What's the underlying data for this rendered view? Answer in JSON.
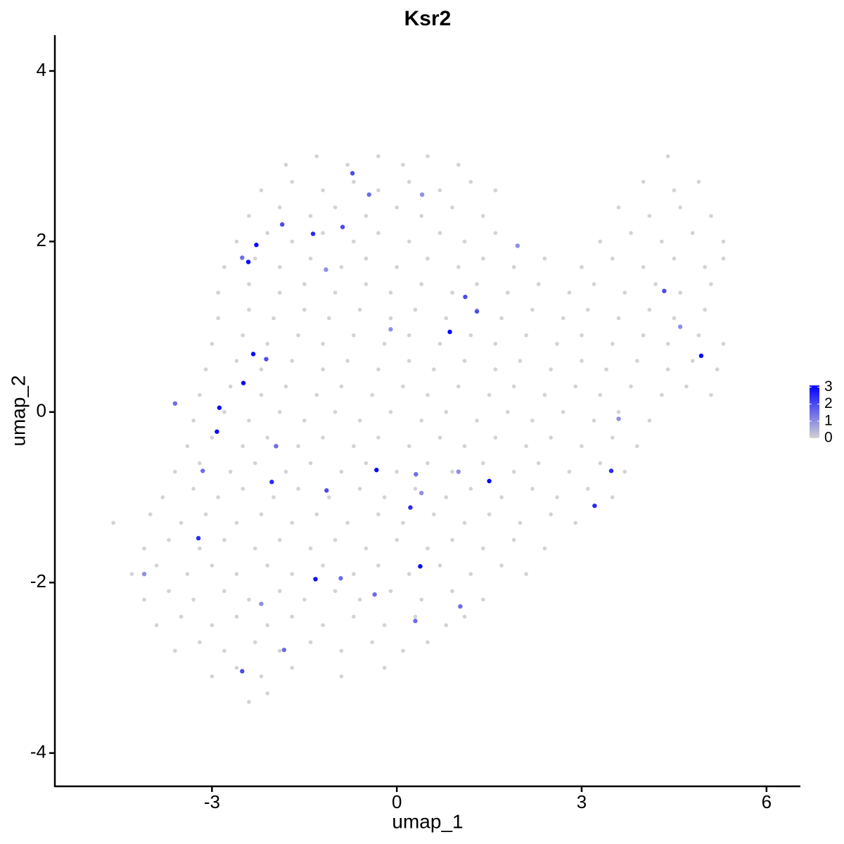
{
  "chart_data": {
    "type": "scatter",
    "title": "Ksr2",
    "xlabel": "umap_1",
    "ylabel": "umap_2",
    "xlim": [
      -5.55,
      6.55
    ],
    "ylim": [
      -4.39,
      4.42
    ],
    "xticks": [
      -3,
      0,
      3,
      6
    ],
    "yticks": [
      -4,
      -2,
      0,
      2,
      4
    ],
    "colorbar": {
      "low_color": "#d3d3d3",
      "high_color": "#0000ff",
      "lim": [
        0,
        3.1
      ],
      "ticks": [
        0,
        1,
        2,
        3
      ]
    },
    "series": [
      {
        "color": "#d3d3d3",
        "x": [
          -2.4,
          -2.1,
          -3.0,
          -2.6,
          -2.2,
          -1.7,
          -0.9,
          -0.2,
          -3.6,
          -3.2,
          -2.8,
          -2.3,
          -1.9,
          -1.4,
          -0.9,
          -0.4,
          0.1,
          0.5,
          -3.9,
          -3.5,
          -3.0,
          -2.6,
          -2.1,
          -1.7,
          -1.2,
          -0.7,
          -0.2,
          0.3,
          0.8,
          1.1,
          -4.1,
          -3.7,
          -3.3,
          -2.8,
          -2.4,
          -1.9,
          -1.5,
          -1.0,
          -0.6,
          -0.1,
          0.4,
          0.9,
          1.4,
          -4.3,
          -3.9,
          -3.4,
          -3.0,
          -2.6,
          -2.1,
          -1.7,
          -1.2,
          -0.7,
          -0.3,
          0.2,
          0.7,
          1.2,
          1.7,
          2.1,
          -4.1,
          -3.7,
          -3.2,
          -2.8,
          -2.3,
          -1.9,
          -1.4,
          -1.0,
          -0.5,
          0,
          0.5,
          0.9,
          1.4,
          1.9,
          2.4,
          -4.6,
          -4.0,
          -3.5,
          -3.1,
          -2.6,
          -2.2,
          -1.7,
          -1.3,
          -0.8,
          -0.3,
          0.1,
          0.6,
          1.1,
          1.5,
          2.0,
          2.5,
          2.9,
          -3.8,
          -3.3,
          -2.9,
          -2.5,
          -2.0,
          -1.6,
          -1.1,
          -0.6,
          -0.2,
          0.3,
          0.8,
          1.2,
          1.7,
          2.2,
          2.6,
          3.1,
          3.5,
          -3.6,
          -3.2,
          -2.7,
          -2.3,
          -1.8,
          -1.4,
          -0.9,
          -0.5,
          0,
          0.5,
          0.9,
          1.4,
          1.9,
          2.3,
          2.8,
          3.3,
          3.7,
          -3.4,
          -3.0,
          -2.5,
          -2.1,
          -1.6,
          -1.2,
          -0.7,
          -0.3,
          0.2,
          0.7,
          1.1,
          1.6,
          2.1,
          2.5,
          3.0,
          3.5,
          3.9,
          -3.3,
          -2.8,
          -2.4,
          -1.9,
          -1.5,
          -1.0,
          -0.6,
          -0.1,
          0.4,
          0.8,
          1.3,
          1.8,
          2.2,
          2.7,
          3.2,
          3.6,
          4.1,
          -3.2,
          -2.7,
          -2.2,
          -1.8,
          -1.3,
          -0.9,
          -0.4,
          0.1,
          0.5,
          1.0,
          1.5,
          1.9,
          2.4,
          2.9,
          3.3,
          3.8,
          4.3,
          4.7,
          5.1,
          -3.1,
          -2.6,
          -2.2,
          -1.7,
          -1.2,
          -0.8,
          -0.3,
          0.2,
          0.6,
          1.1,
          1.6,
          2.0,
          2.5,
          3.0,
          3.4,
          3.9,
          4.4,
          4.8,
          5.2,
          -3.0,
          -2.5,
          -2.1,
          -1.6,
          -1.2,
          -0.7,
          -0.2,
          0.2,
          0.7,
          1.2,
          1.6,
          2.1,
          2.6,
          3.0,
          3.5,
          4.0,
          4.4,
          4.9,
          5.3,
          -2.9,
          -2.4,
          -2.0,
          -1.5,
          -1.1,
          -0.6,
          -0.1,
          0.3,
          0.8,
          1.3,
          1.7,
          2.2,
          2.7,
          3.1,
          3.6,
          4.1,
          4.5,
          5.0,
          -2.9,
          -2.4,
          -1.9,
          -1.5,
          -1.0,
          -0.5,
          -0.1,
          0.4,
          0.9,
          1.3,
          1.8,
          2.3,
          2.8,
          3.2,
          3.7,
          4.2,
          4.6,
          5.1,
          -2.8,
          -2.3,
          -1.9,
          -1.4,
          -0.9,
          -0.5,
          0,
          0.5,
          1.0,
          1.4,
          1.9,
          2.4,
          3.0,
          3.5,
          4.0,
          4.5,
          5.0,
          5.3,
          -2.6,
          -2.1,
          -1.7,
          -1.2,
          -0.7,
          -0.3,
          0.2,
          0.7,
          1.1,
          1.6,
          3.3,
          3.8,
          4.3,
          4.8,
          5.3,
          -2.4,
          -1.9,
          -1.4,
          -1.0,
          -0.5,
          0,
          0.4,
          0.9,
          1.4,
          3.6,
          4.1,
          4.6,
          5.1,
          -2.2,
          -1.7,
          -1.2,
          -0.7,
          -0.3,
          0.2,
          0.7,
          1.2,
          1.6,
          4.0,
          4.5,
          4.9,
          -1.8,
          -1.3,
          -0.8,
          -0.3,
          0.1,
          0.5,
          1.0,
          4.4
        ],
        "y": [
          -3.4,
          -3.3,
          -3.1,
          -3.0,
          -3.1,
          -3.0,
          -3.1,
          -3.0,
          -2.8,
          -2.7,
          -2.8,
          -2.7,
          -2.8,
          -2.7,
          -2.8,
          -2.7,
          -2.8,
          -2.7,
          -2.5,
          -2.4,
          -2.5,
          -2.4,
          -2.5,
          -2.4,
          -2.5,
          -2.4,
          -2.5,
          -2.4,
          -2.5,
          -2.4,
          -2.2,
          -2.1,
          -2.2,
          -2.1,
          -2.2,
          -2.1,
          -2.2,
          -2.1,
          -2.2,
          -2.1,
          -2.2,
          -2.1,
          -2.2,
          -1.9,
          -1.8,
          -1.9,
          -1.8,
          -1.9,
          -1.8,
          -1.9,
          -1.8,
          -1.9,
          -1.8,
          -1.9,
          -1.8,
          -1.9,
          -1.8,
          -1.9,
          -1.6,
          -1.5,
          -1.6,
          -1.5,
          -1.6,
          -1.5,
          -1.6,
          -1.5,
          -1.6,
          -1.5,
          -1.6,
          -1.5,
          -1.6,
          -1.5,
          -1.6,
          -1.3,
          -1.2,
          -1.3,
          -1.2,
          -1.3,
          -1.2,
          -1.3,
          -1.2,
          -1.3,
          -1.2,
          -1.3,
          -1.2,
          -1.3,
          -1.2,
          -1.3,
          -1.2,
          -1.3,
          -1.0,
          -0.9,
          -1.0,
          -0.9,
          -1.0,
          -0.9,
          -1.0,
          -0.9,
          -1.0,
          -0.9,
          -1.0,
          -0.9,
          -1.0,
          -0.9,
          -1.0,
          -0.9,
          -1.0,
          -0.7,
          -0.6,
          -0.7,
          -0.6,
          -0.7,
          -0.6,
          -0.7,
          -0.6,
          -0.7,
          -0.6,
          -0.7,
          -0.6,
          -0.7,
          -0.6,
          -0.7,
          -0.6,
          -0.7,
          -0.4,
          -0.3,
          -0.4,
          -0.3,
          -0.4,
          -0.3,
          -0.4,
          -0.3,
          -0.4,
          -0.3,
          -0.4,
          -0.3,
          -0.4,
          -0.3,
          -0.4,
          -0.3,
          -0.4,
          -0.1,
          0,
          -0.1,
          0,
          -0.1,
          0,
          -0.1,
          0,
          -0.1,
          0,
          -0.1,
          0,
          -0.1,
          0,
          -0.1,
          0,
          -0.1,
          0.2,
          0.3,
          0.2,
          0.3,
          0.2,
          0.3,
          0.2,
          0.3,
          0.2,
          0.3,
          0.2,
          0.3,
          0.2,
          0.3,
          0.2,
          0.3,
          0.2,
          0.3,
          0.2,
          0.5,
          0.6,
          0.5,
          0.6,
          0.5,
          0.6,
          0.5,
          0.6,
          0.5,
          0.6,
          0.5,
          0.6,
          0.5,
          0.6,
          0.5,
          0.6,
          0.5,
          0.6,
          0.5,
          0.8,
          0.9,
          0.8,
          0.9,
          0.8,
          0.9,
          0.8,
          0.9,
          0.8,
          0.9,
          0.8,
          0.9,
          0.8,
          0.9,
          0.8,
          0.9,
          0.8,
          0.9,
          0.8,
          1.1,
          1.2,
          1.1,
          1.2,
          1.1,
          1.2,
          1.1,
          1.2,
          1.1,
          1.2,
          1.1,
          1.2,
          1.1,
          1.2,
          1.1,
          1.2,
          1.1,
          1.2,
          1.4,
          1.5,
          1.4,
          1.5,
          1.4,
          1.5,
          1.4,
          1.5,
          1.4,
          1.5,
          1.4,
          1.5,
          1.4,
          1.5,
          1.4,
          1.5,
          1.4,
          1.5,
          1.7,
          1.8,
          1.7,
          1.8,
          1.7,
          1.8,
          1.7,
          1.8,
          1.7,
          1.8,
          1.7,
          1.8,
          1.7,
          1.8,
          1.7,
          1.8,
          1.7,
          1.8,
          2.0,
          2.1,
          2.0,
          2.1,
          2.0,
          2.1,
          2.0,
          2.1,
          2.0,
          2.1,
          2.0,
          2.1,
          2.0,
          2.1,
          2.0,
          2.3,
          2.4,
          2.3,
          2.4,
          2.3,
          2.4,
          2.3,
          2.4,
          2.3,
          2.4,
          2.3,
          2.4,
          2.3,
          2.6,
          2.7,
          2.6,
          2.7,
          2.6,
          2.7,
          2.6,
          2.7,
          2.6,
          2.7,
          2.6,
          2.7,
          2.9,
          3.0,
          2.9,
          3.0,
          2.9,
          3.0,
          2.9,
          3.0
        ]
      },
      {
        "x": [
          -2.28,
          -2.41,
          -2.33,
          -2.49,
          -2.88,
          -2.92,
          0.86,
          -0.33,
          1.5,
          0.22,
          0.38,
          -1.32,
          -3.22,
          3.21,
          3.48,
          4.94,
          -2.03,
          -1.36,
          -1.86,
          -0.88,
          -0.72,
          1.3,
          1.11,
          4.34,
          -2.12,
          -0.36,
          1.03,
          -1.14,
          -0.91,
          -2.51,
          -1.83,
          0.31,
          -2.51,
          -3.15,
          -1.96,
          -4.1,
          -3.6,
          0.41,
          -0.1,
          1.96,
          4.6,
          -0.45,
          0.4,
          3.6,
          -1.15,
          -2.2,
          0.3,
          1.0
        ],
        "y": [
          1.96,
          1.76,
          0.68,
          0.34,
          0.05,
          -0.23,
          0.94,
          -0.68,
          -0.81,
          -1.12,
          -1.81,
          -1.96,
          -1.48,
          -1.1,
          -0.69,
          0.66,
          -0.82,
          2.09,
          2.2,
          2.17,
          2.8,
          1.18,
          1.35,
          1.42,
          0.62,
          -2.14,
          -2.28,
          -0.92,
          -1.95,
          -3.04,
          -2.79,
          -0.73,
          1.81,
          -0.69,
          -0.4,
          -1.9,
          0.1,
          2.55,
          0.97,
          1.95,
          1.0,
          2.55,
          -0.95,
          -0.08,
          1.67,
          -2.25,
          -2.45,
          -0.7
        ],
        "values": [
          3,
          3,
          3,
          3,
          3,
          3,
          3,
          3,
          3,
          2.5,
          3,
          3,
          2.5,
          2.5,
          2.5,
          3,
          2.5,
          2.5,
          2,
          2,
          2,
          2,
          2,
          2,
          2,
          1.5,
          1.5,
          2,
          1.5,
          2,
          1.5,
          1.5,
          1.5,
          1.5,
          1.5,
          1,
          1.5,
          1,
          1,
          1,
          1,
          1.5,
          1,
          1,
          1,
          1,
          1.5,
          1
        ]
      }
    ]
  }
}
